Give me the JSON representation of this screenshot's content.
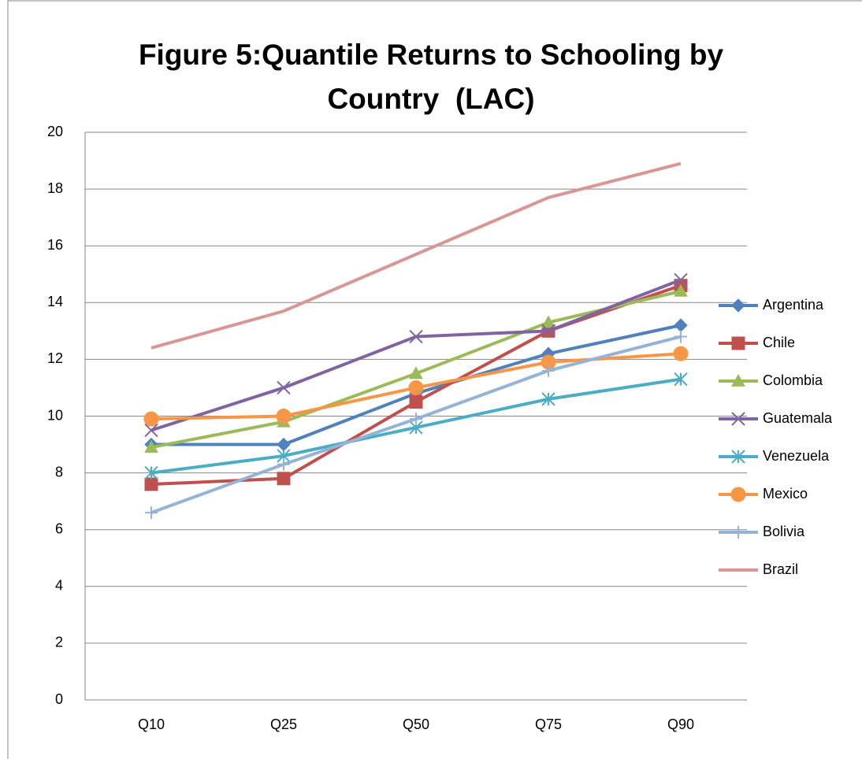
{
  "chart_data": {
    "type": "line",
    "title": "Figure 5:Quantile Returns to Schooling by Country  (LAC)",
    "categories": [
      "Q10",
      "Q25",
      "Q50",
      "Q75",
      "Q90"
    ],
    "ylim": [
      0,
      20
    ],
    "yticks": [
      0,
      2,
      4,
      6,
      8,
      10,
      12,
      14,
      16,
      18,
      20
    ],
    "grid": true,
    "legend": "right",
    "series": [
      {
        "name": "Argentina",
        "color": "#4f81bd",
        "marker": "diamond",
        "values": [
          9.0,
          9.0,
          10.8,
          12.2,
          13.2
        ]
      },
      {
        "name": "Chile",
        "color": "#c0504d",
        "marker": "square",
        "values": [
          7.6,
          7.8,
          10.5,
          13.0,
          14.6
        ]
      },
      {
        "name": "Colombia",
        "color": "#9bbb59",
        "marker": "triangle",
        "values": [
          8.9,
          9.8,
          11.5,
          13.3,
          14.4
        ]
      },
      {
        "name": "Guatemala",
        "color": "#8064a2",
        "marker": "x",
        "values": [
          9.5,
          11.0,
          12.8,
          13.0,
          14.8
        ]
      },
      {
        "name": "Venezuela",
        "color": "#4bacc6",
        "marker": "star",
        "values": [
          8.0,
          8.6,
          9.6,
          10.6,
          11.3
        ]
      },
      {
        "name": "Mexico",
        "color": "#f79646",
        "marker": "circle",
        "values": [
          9.9,
          10.0,
          11.0,
          11.9,
          12.2
        ]
      },
      {
        "name": "Bolivia",
        "color": "#95b3d7",
        "marker": "plus",
        "values": [
          6.6,
          8.3,
          9.9,
          11.6,
          12.8
        ]
      },
      {
        "name": "Brazil",
        "color": "#d99694",
        "marker": "none",
        "values": [
          12.4,
          13.7,
          15.7,
          17.7,
          18.9
        ]
      }
    ]
  }
}
